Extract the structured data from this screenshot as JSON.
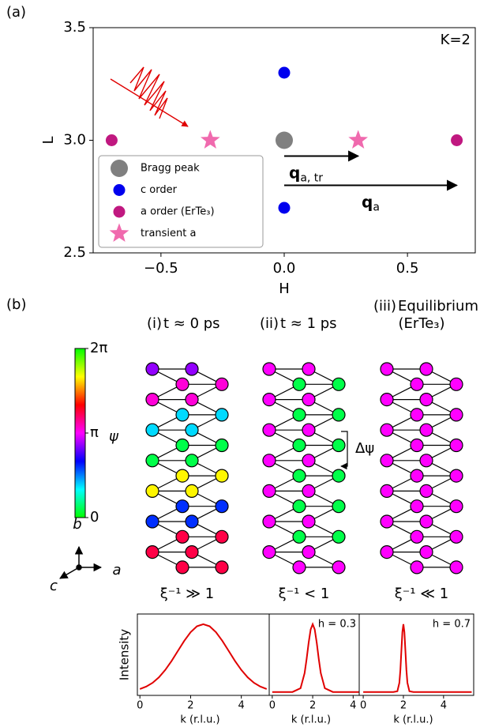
{
  "panel_labels": {
    "a": "(a)",
    "b": "(b)"
  },
  "chart_data": [
    {
      "type": "scatter",
      "annotation": "K=2",
      "xlabel": "H",
      "ylabel": "L",
      "xlim": [
        -0.775,
        0.775
      ],
      "ylim": [
        2.5,
        3.5
      ],
      "xticks": [
        {
          "value": -0.5,
          "label": "−0.5"
        },
        {
          "value": 0,
          "label": "0.0"
        },
        {
          "value": 0.5,
          "label": "0.5"
        }
      ],
      "yticks": [
        {
          "value": 2.5,
          "label": "2.5"
        },
        {
          "value": 3,
          "label": "3.0"
        },
        {
          "value": 3.5,
          "label": "3.5"
        }
      ],
      "legend": "lower left",
      "series": [
        {
          "name": "Bragg peak",
          "color": "#808080",
          "marker": "large-circle",
          "x": [
            0
          ],
          "y": [
            3
          ]
        },
        {
          "name": "c order",
          "color": "#0000ee",
          "marker": "circle",
          "x": [
            0,
            0
          ],
          "y": [
            3.3,
            2.7
          ]
        },
        {
          "name": "a order (ErTe₃)",
          "color": "#c01880",
          "marker": "circle",
          "x": [
            -0.7,
            0.7
          ],
          "y": [
            3,
            3
          ]
        },
        {
          "name": "transient a",
          "color": "#f06aae",
          "marker": "star",
          "x": [
            -0.3,
            0.3
          ],
          "y": [
            3,
            3
          ]
        }
      ],
      "arrows": [
        {
          "symbol": "q",
          "subscript": "a, tr",
          "x": [
            0,
            0.3
          ],
          "y": 2.93
        },
        {
          "symbol": "q",
          "subscript": "a",
          "x": [
            0,
            0.7
          ],
          "y": 2.8
        }
      ]
    },
    {
      "type": "line",
      "ylabel": "Intensity",
      "xlabel": "k (r.l.u.)",
      "xlim": [
        -0.1,
        5.1
      ],
      "ylim": [
        -0.05,
        1.15
      ],
      "xticks": [
        0,
        2,
        4
      ],
      "series": [
        {
          "color": "#e00000",
          "x": [
            0,
            0.25,
            0.5,
            0.75,
            1,
            1.25,
            1.5,
            1.75,
            2,
            2.25,
            2.5,
            2.75,
            3,
            3.25,
            3.5,
            3.75,
            4,
            4.25,
            4.5,
            4.75,
            5
          ],
          "y": [
            0.044,
            0.08,
            0.135,
            0.216,
            0.325,
            0.458,
            0.607,
            0.755,
            0.882,
            0.969,
            1,
            0.969,
            0.882,
            0.755,
            0.607,
            0.458,
            0.325,
            0.216,
            0.135,
            0.08,
            0.044
          ]
        }
      ]
    },
    {
      "type": "line",
      "xlabel": "k (r.l.u.)",
      "annotation": "h = 0.3",
      "xlim": [
        -0.15,
        4.3
      ],
      "ylim": [
        -0.05,
        1.15
      ],
      "xticks": [
        0,
        2,
        4
      ],
      "series": [
        {
          "color": "#e00000",
          "x": [
            0,
            1,
            1.4,
            1.6,
            1.7,
            1.8,
            1.9,
            2,
            2.1,
            2.2,
            2.3,
            2.4,
            2.6,
            3,
            4,
            4.3
          ],
          "y": [
            0,
            0,
            0.056,
            0.278,
            0.487,
            0.726,
            0.923,
            1,
            0.923,
            0.726,
            0.487,
            0.278,
            0.056,
            0,
            0,
            0
          ]
        }
      ]
    },
    {
      "type": "line",
      "xlabel": "k (r.l.u.)",
      "annotation": "h = 0.7",
      "xlim": [
        -0.2,
        5.5
      ],
      "ylim": [
        -0.05,
        1.15
      ],
      "xticks": [
        0,
        2,
        4
      ],
      "series": [
        {
          "color": "#e00000",
          "x": [
            0,
            1.5,
            1.7,
            1.8,
            1.85,
            1.9,
            1.95,
            2,
            2.05,
            2.1,
            2.15,
            2.2,
            2.3,
            2.5,
            5.4
          ],
          "y": [
            0,
            0,
            0.011,
            0.135,
            0.325,
            0.607,
            0.882,
            1,
            0.882,
            0.607,
            0.325,
            0.135,
            0.011,
            0,
            0
          ]
        }
      ]
    }
  ],
  "diagram": {
    "colorbar": {
      "label": "ψ",
      "lim": [
        0,
        6.2832
      ],
      "ticks": [
        {
          "value": 0,
          "label": "0"
        },
        {
          "value": 3.1416,
          "label": "π"
        },
        {
          "value": 6.2832,
          "label": "2π"
        }
      ]
    },
    "columns": [
      {
        "index": "(i)",
        "title": [
          "t ≈ 0 ps"
        ],
        "xi": "ξ⁻¹ ≫ 1",
        "phases": [
          2.7,
          3.3,
          3.3,
          1.2,
          1.2,
          0.3,
          0.3,
          5.2,
          5.2,
          1.9,
          1.9,
          3.9,
          3.9,
          3.9
        ]
      },
      {
        "index": "(ii)",
        "title": [
          "t ≈ 1 ps"
        ],
        "xi": "ξ⁻¹ < 1",
        "phases": [
          3.14,
          0.3,
          3.14,
          0.3,
          3.14,
          0.3,
          3.14,
          0.3,
          3.14,
          0.3,
          3.14,
          0.3,
          3.14,
          3.14
        ]
      },
      {
        "index": "(iii)",
        "title": [
          "Equilibrium",
          "(ErTe₃)"
        ],
        "xi": "ξ⁻¹ ≪ 1",
        "phases": [
          3.14,
          3.14,
          3.14,
          3.14,
          3.14,
          3.14,
          3.14,
          3.14,
          3.14,
          3.14,
          3.14,
          3.14,
          3.14,
          3.14
        ]
      }
    ],
    "delta": "Δψ",
    "axes": {
      "a": "a",
      "b": "b",
      "c": "c"
    }
  }
}
